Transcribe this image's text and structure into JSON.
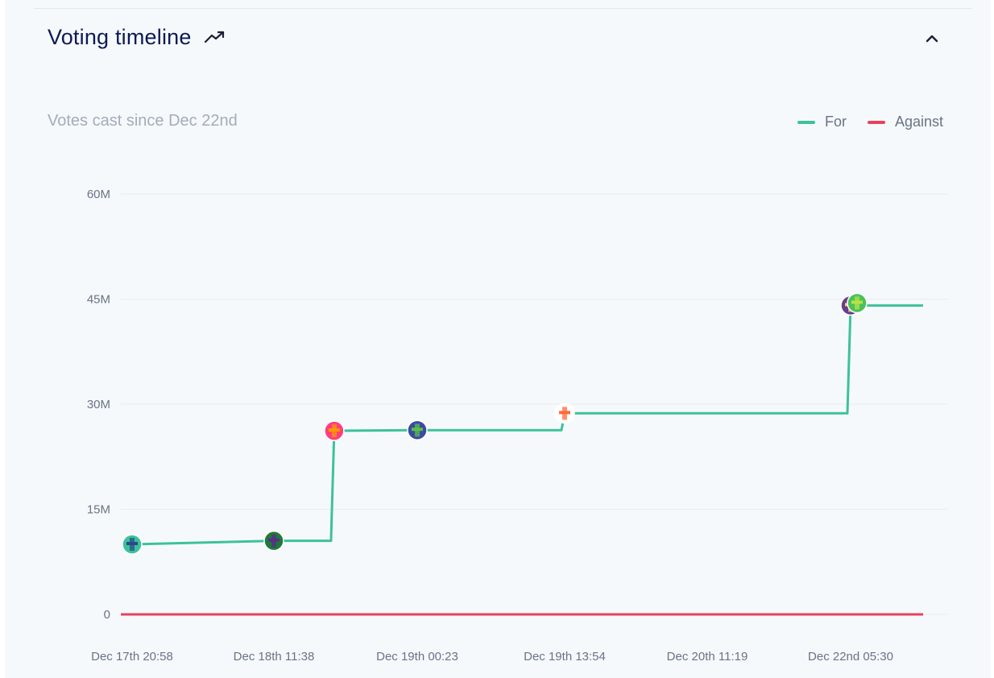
{
  "header": {
    "title": "Voting timeline",
    "trend_icon": "trending-up-icon",
    "collapse_icon": "chevron-up-icon"
  },
  "chart_data": {
    "type": "line",
    "subtitle": "Votes cast since Dec 22nd",
    "legend": [
      {
        "name": "For",
        "color": "#3cc29a"
      },
      {
        "name": "Against",
        "color": "#e5435e"
      }
    ],
    "legend_position": "top-right",
    "grid": true,
    "ylim": [
      0,
      60000000
    ],
    "y_ticks": [
      {
        "value": 0,
        "label": "0"
      },
      {
        "value": 15000000,
        "label": "15M"
      },
      {
        "value": 30000000,
        "label": "30M"
      },
      {
        "value": 45000000,
        "label": "45M"
      },
      {
        "value": 60000000,
        "label": "60M"
      }
    ],
    "x_tick_labels": [
      "Dec 17th 20:58",
      "Dec 18th 11:38",
      "Dec 19th 00:23",
      "Dec 19th 13:54",
      "Dec 20th 11:19",
      "Dec 22nd 05:30"
    ],
    "series": [
      {
        "name": "For",
        "color": "#3cc29a",
        "points": [
          {
            "x": "Dec 17th 20:58",
            "y": 10000000
          },
          {
            "x": "Dec 18th 11:38",
            "y": 10500000
          },
          {
            "x": "Dec 18th 17:00",
            "y": 26200000
          },
          {
            "x": "Dec 19th 00:23",
            "y": 26300000
          },
          {
            "x": "Dec 19th 13:54",
            "y": 28700000
          },
          {
            "x": "Dec 22nd 05:30",
            "y": 44100000
          },
          {
            "x": "Dec 22nd 12:00",
            "y": 44100000
          }
        ]
      },
      {
        "name": "Against",
        "color": "#e5435e",
        "points": [
          {
            "x": "Dec 17th 20:58",
            "y": 0
          },
          {
            "x": "Dec 22nd 12:00",
            "y": 0
          }
        ]
      }
    ],
    "voter_markers": [
      {
        "x": "Dec 17th 20:58",
        "y": 10000000,
        "icon": "voter-avatar-icon",
        "colors": [
          "#3cc29a",
          "#2b4a8a"
        ]
      },
      {
        "x": "Dec 18th 11:38",
        "y": 10500000,
        "icon": "voter-avatar-icon",
        "colors": [
          "#1f7a3a",
          "#5a2e8a"
        ]
      },
      {
        "x": "Dec 18th 17:00",
        "y": 26200000,
        "icon": "voter-avatar-icon",
        "colors": [
          "#ff3d7f",
          "#ff9900"
        ]
      },
      {
        "x": "Dec 19th 00:23",
        "y": 26300000,
        "icon": "voter-avatar-icon",
        "colors": [
          "#3b4aa0",
          "#5cbf4a"
        ]
      },
      {
        "x": "Dec 19th 13:54",
        "y": 28700000,
        "icon": "voter-avatar-icon",
        "colors": [
          "#ffffff",
          "#ff6a3d"
        ]
      },
      {
        "x": "Dec 22nd 05:30",
        "y": 44100000,
        "icon": "voter-avatar-icon",
        "colors": [
          "#6a3c8c",
          "#e8d36a"
        ]
      },
      {
        "x": "Dec 22nd 05:30",
        "y": 44100000,
        "icon": "voter-avatar-icon",
        "colors": [
          "#49c25a",
          "#b8e04a"
        ]
      }
    ]
  }
}
